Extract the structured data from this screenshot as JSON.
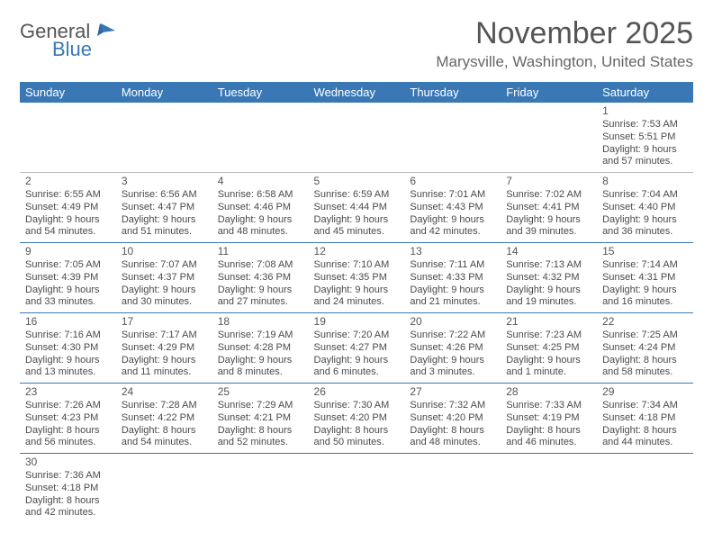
{
  "logo": {
    "word1": "General",
    "word2": "Blue"
  },
  "title": "November 2025",
  "location": "Marysville, Washington, United States",
  "colors": {
    "header_bg": "#3a78b5",
    "header_text": "#ffffff",
    "rule": "#3a78b5",
    "text": "#4a4a4a"
  },
  "days_of_week": [
    "Sunday",
    "Monday",
    "Tuesday",
    "Wednesday",
    "Thursday",
    "Friday",
    "Saturday"
  ],
  "weeks": [
    [
      null,
      null,
      null,
      null,
      null,
      null,
      {
        "n": "1",
        "sunrise": "7:53 AM",
        "sunset": "5:51 PM",
        "daylight": "9 hours and 57 minutes."
      }
    ],
    [
      {
        "n": "2",
        "sunrise": "6:55 AM",
        "sunset": "4:49 PM",
        "daylight": "9 hours and 54 minutes."
      },
      {
        "n": "3",
        "sunrise": "6:56 AM",
        "sunset": "4:47 PM",
        "daylight": "9 hours and 51 minutes."
      },
      {
        "n": "4",
        "sunrise": "6:58 AM",
        "sunset": "4:46 PM",
        "daylight": "9 hours and 48 minutes."
      },
      {
        "n": "5",
        "sunrise": "6:59 AM",
        "sunset": "4:44 PM",
        "daylight": "9 hours and 45 minutes."
      },
      {
        "n": "6",
        "sunrise": "7:01 AM",
        "sunset": "4:43 PM",
        "daylight": "9 hours and 42 minutes."
      },
      {
        "n": "7",
        "sunrise": "7:02 AM",
        "sunset": "4:41 PM",
        "daylight": "9 hours and 39 minutes."
      },
      {
        "n": "8",
        "sunrise": "7:04 AM",
        "sunset": "4:40 PM",
        "daylight": "9 hours and 36 minutes."
      }
    ],
    [
      {
        "n": "9",
        "sunrise": "7:05 AM",
        "sunset": "4:39 PM",
        "daylight": "9 hours and 33 minutes."
      },
      {
        "n": "10",
        "sunrise": "7:07 AM",
        "sunset": "4:37 PM",
        "daylight": "9 hours and 30 minutes."
      },
      {
        "n": "11",
        "sunrise": "7:08 AM",
        "sunset": "4:36 PM",
        "daylight": "9 hours and 27 minutes."
      },
      {
        "n": "12",
        "sunrise": "7:10 AM",
        "sunset": "4:35 PM",
        "daylight": "9 hours and 24 minutes."
      },
      {
        "n": "13",
        "sunrise": "7:11 AM",
        "sunset": "4:33 PM",
        "daylight": "9 hours and 21 minutes."
      },
      {
        "n": "14",
        "sunrise": "7:13 AM",
        "sunset": "4:32 PM",
        "daylight": "9 hours and 19 minutes."
      },
      {
        "n": "15",
        "sunrise": "7:14 AM",
        "sunset": "4:31 PM",
        "daylight": "9 hours and 16 minutes."
      }
    ],
    [
      {
        "n": "16",
        "sunrise": "7:16 AM",
        "sunset": "4:30 PM",
        "daylight": "9 hours and 13 minutes."
      },
      {
        "n": "17",
        "sunrise": "7:17 AM",
        "sunset": "4:29 PM",
        "daylight": "9 hours and 11 minutes."
      },
      {
        "n": "18",
        "sunrise": "7:19 AM",
        "sunset": "4:28 PM",
        "daylight": "9 hours and 8 minutes."
      },
      {
        "n": "19",
        "sunrise": "7:20 AM",
        "sunset": "4:27 PM",
        "daylight": "9 hours and 6 minutes."
      },
      {
        "n": "20",
        "sunrise": "7:22 AM",
        "sunset": "4:26 PM",
        "daylight": "9 hours and 3 minutes."
      },
      {
        "n": "21",
        "sunrise": "7:23 AM",
        "sunset": "4:25 PM",
        "daylight": "9 hours and 1 minute."
      },
      {
        "n": "22",
        "sunrise": "7:25 AM",
        "sunset": "4:24 PM",
        "daylight": "8 hours and 58 minutes."
      }
    ],
    [
      {
        "n": "23",
        "sunrise": "7:26 AM",
        "sunset": "4:23 PM",
        "daylight": "8 hours and 56 minutes."
      },
      {
        "n": "24",
        "sunrise": "7:28 AM",
        "sunset": "4:22 PM",
        "daylight": "8 hours and 54 minutes."
      },
      {
        "n": "25",
        "sunrise": "7:29 AM",
        "sunset": "4:21 PM",
        "daylight": "8 hours and 52 minutes."
      },
      {
        "n": "26",
        "sunrise": "7:30 AM",
        "sunset": "4:20 PM",
        "daylight": "8 hours and 50 minutes."
      },
      {
        "n": "27",
        "sunrise": "7:32 AM",
        "sunset": "4:20 PM",
        "daylight": "8 hours and 48 minutes."
      },
      {
        "n": "28",
        "sunrise": "7:33 AM",
        "sunset": "4:19 PM",
        "daylight": "8 hours and 46 minutes."
      },
      {
        "n": "29",
        "sunrise": "7:34 AM",
        "sunset": "4:18 PM",
        "daylight": "8 hours and 44 minutes."
      }
    ],
    [
      {
        "n": "30",
        "sunrise": "7:36 AM",
        "sunset": "4:18 PM",
        "daylight": "8 hours and 42 minutes."
      },
      null,
      null,
      null,
      null,
      null,
      null
    ]
  ],
  "labels": {
    "sunrise": "Sunrise:",
    "sunset": "Sunset:",
    "daylight": "Daylight:"
  }
}
